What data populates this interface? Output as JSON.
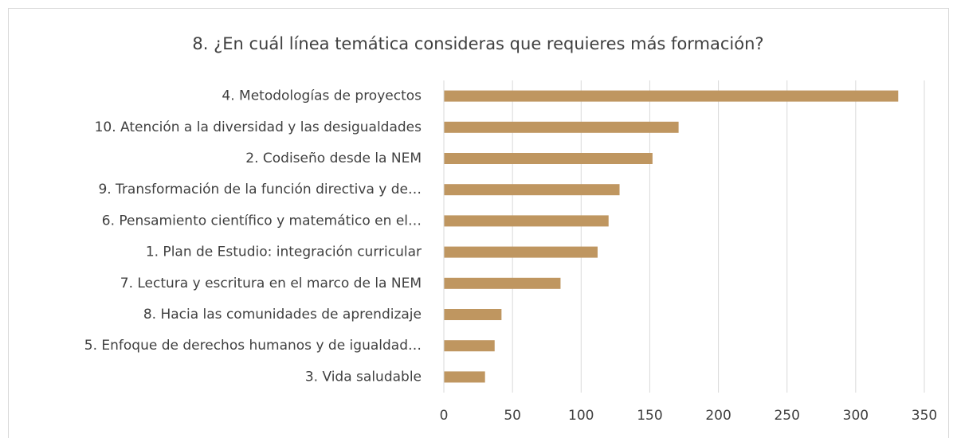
{
  "chart_data": {
    "type": "barh",
    "title": "8. ¿En cuál línea temática consideras que requieres más formación?",
    "categories": [
      "4. Metodologías de proyectos",
      "10. Atención a la diversidad y las desigualdades",
      "2. Codiseño desde la NEM",
      "9. Transformación de la función directiva y de…",
      "6. Pensamiento científico y matemático en el…",
      "1. Plan de Estudio: integración curricular",
      "7. Lectura y escritura en el marco de la NEM",
      "8. Hacia las comunidades de aprendizaje",
      "5. Enfoque de derechos humanos y de igualdad…",
      "3. Vida saludable"
    ],
    "values": [
      331,
      171,
      152,
      128,
      120,
      112,
      85,
      42,
      37,
      30
    ],
    "color": "#bf9660",
    "xlim": [
      0,
      350
    ],
    "xticks": [
      0,
      50,
      100,
      150,
      200,
      250,
      300,
      350
    ],
    "grid": true
  }
}
